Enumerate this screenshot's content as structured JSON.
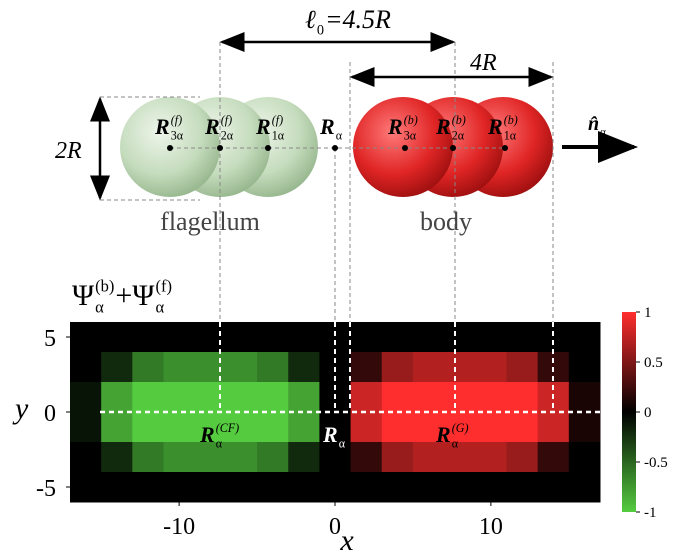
{
  "diagram": {
    "spacing_label": {
      "base": "ℓ",
      "sub": "0",
      "rest": "=4.5R"
    },
    "body_length_label": "4R",
    "diameter_label": "2R",
    "direction_label": {
      "base": "n̂",
      "sub": "α"
    },
    "flagellum_label": "flagellum",
    "body_label": "body",
    "bead_labels": [
      {
        "base": "R",
        "sub": "3α",
        "sup": "(f)"
      },
      {
        "base": "R",
        "sub": "2α",
        "sup": "(f)"
      },
      {
        "base": "R",
        "sub": "1α",
        "sup": "(f)"
      },
      {
        "base": "R",
        "sub": "α"
      },
      {
        "base": "R",
        "sub": "3α",
        "sup": "(b)"
      },
      {
        "base": "R",
        "sub": "2α",
        "sup": "(b)"
      },
      {
        "base": "R",
        "sub": "1α",
        "sup": "(b)"
      }
    ]
  },
  "chart_data": {
    "type": "heatmap",
    "title": [
      {
        "base": "Ψ",
        "sub": "α",
        "sup": "(b)"
      },
      {
        "base": "+Ψ",
        "sub": "α",
        "sup": "(f)"
      }
    ],
    "xlabel": "x",
    "ylabel": "y",
    "xlim": [
      -17,
      17
    ],
    "ylim": [
      -6,
      6
    ],
    "xticks": [
      -10,
      0,
      10
    ],
    "yticks": [
      5,
      0,
      -5
    ],
    "xbins": [
      -17,
      -15,
      -13,
      -11,
      -9,
      -7,
      -5,
      -3,
      -1,
      1,
      3,
      5,
      7,
      9,
      11,
      13,
      15,
      17
    ],
    "ybins": [
      6,
      4,
      2,
      0,
      -2,
      -4,
      -6
    ],
    "z": [
      [
        0,
        0,
        0,
        0,
        0,
        0,
        0,
        0,
        0,
        0,
        0,
        0,
        0,
        0,
        0,
        0,
        0
      ],
      [
        0,
        -0.2,
        -0.6,
        -0.7,
        -0.7,
        -0.7,
        -0.6,
        -0.2,
        0,
        0.2,
        0.6,
        0.7,
        0.7,
        0.7,
        0.6,
        0.2,
        0
      ],
      [
        -0.1,
        -0.8,
        -1,
        -1,
        -1,
        -1,
        -1,
        -0.8,
        0,
        0.8,
        1,
        1,
        1,
        1,
        1,
        0.8,
        0.1
      ],
      [
        -0.1,
        -0.8,
        -1,
        -1,
        -1,
        -1,
        -1,
        -0.8,
        0,
        0.8,
        1,
        1,
        1,
        1,
        1,
        0.8,
        0.1
      ],
      [
        0,
        -0.2,
        -0.6,
        -0.7,
        -0.7,
        -0.7,
        -0.6,
        -0.2,
        0,
        0.2,
        0.6,
        0.7,
        0.7,
        0.7,
        0.6,
        0.2,
        0
      ],
      [
        0,
        0,
        0,
        0,
        0,
        0,
        0,
        0,
        0,
        0,
        0,
        0,
        0,
        0,
        0,
        0,
        0
      ]
    ],
    "clim": [
      -1,
      1
    ],
    "colorbar_ticks": [
      1,
      0.5,
      0,
      -0.5,
      -1
    ],
    "colors": {
      "low": "#55cc40",
      "mid": "#000000",
      "high": "#ff2e2e"
    },
    "annotations": [
      {
        "base": "R",
        "sub": "α",
        "sup": "(CF)"
      },
      {
        "base": "R",
        "sub": "α"
      },
      {
        "base": "R",
        "sub": "α",
        "sup": "(G)"
      }
    ]
  }
}
